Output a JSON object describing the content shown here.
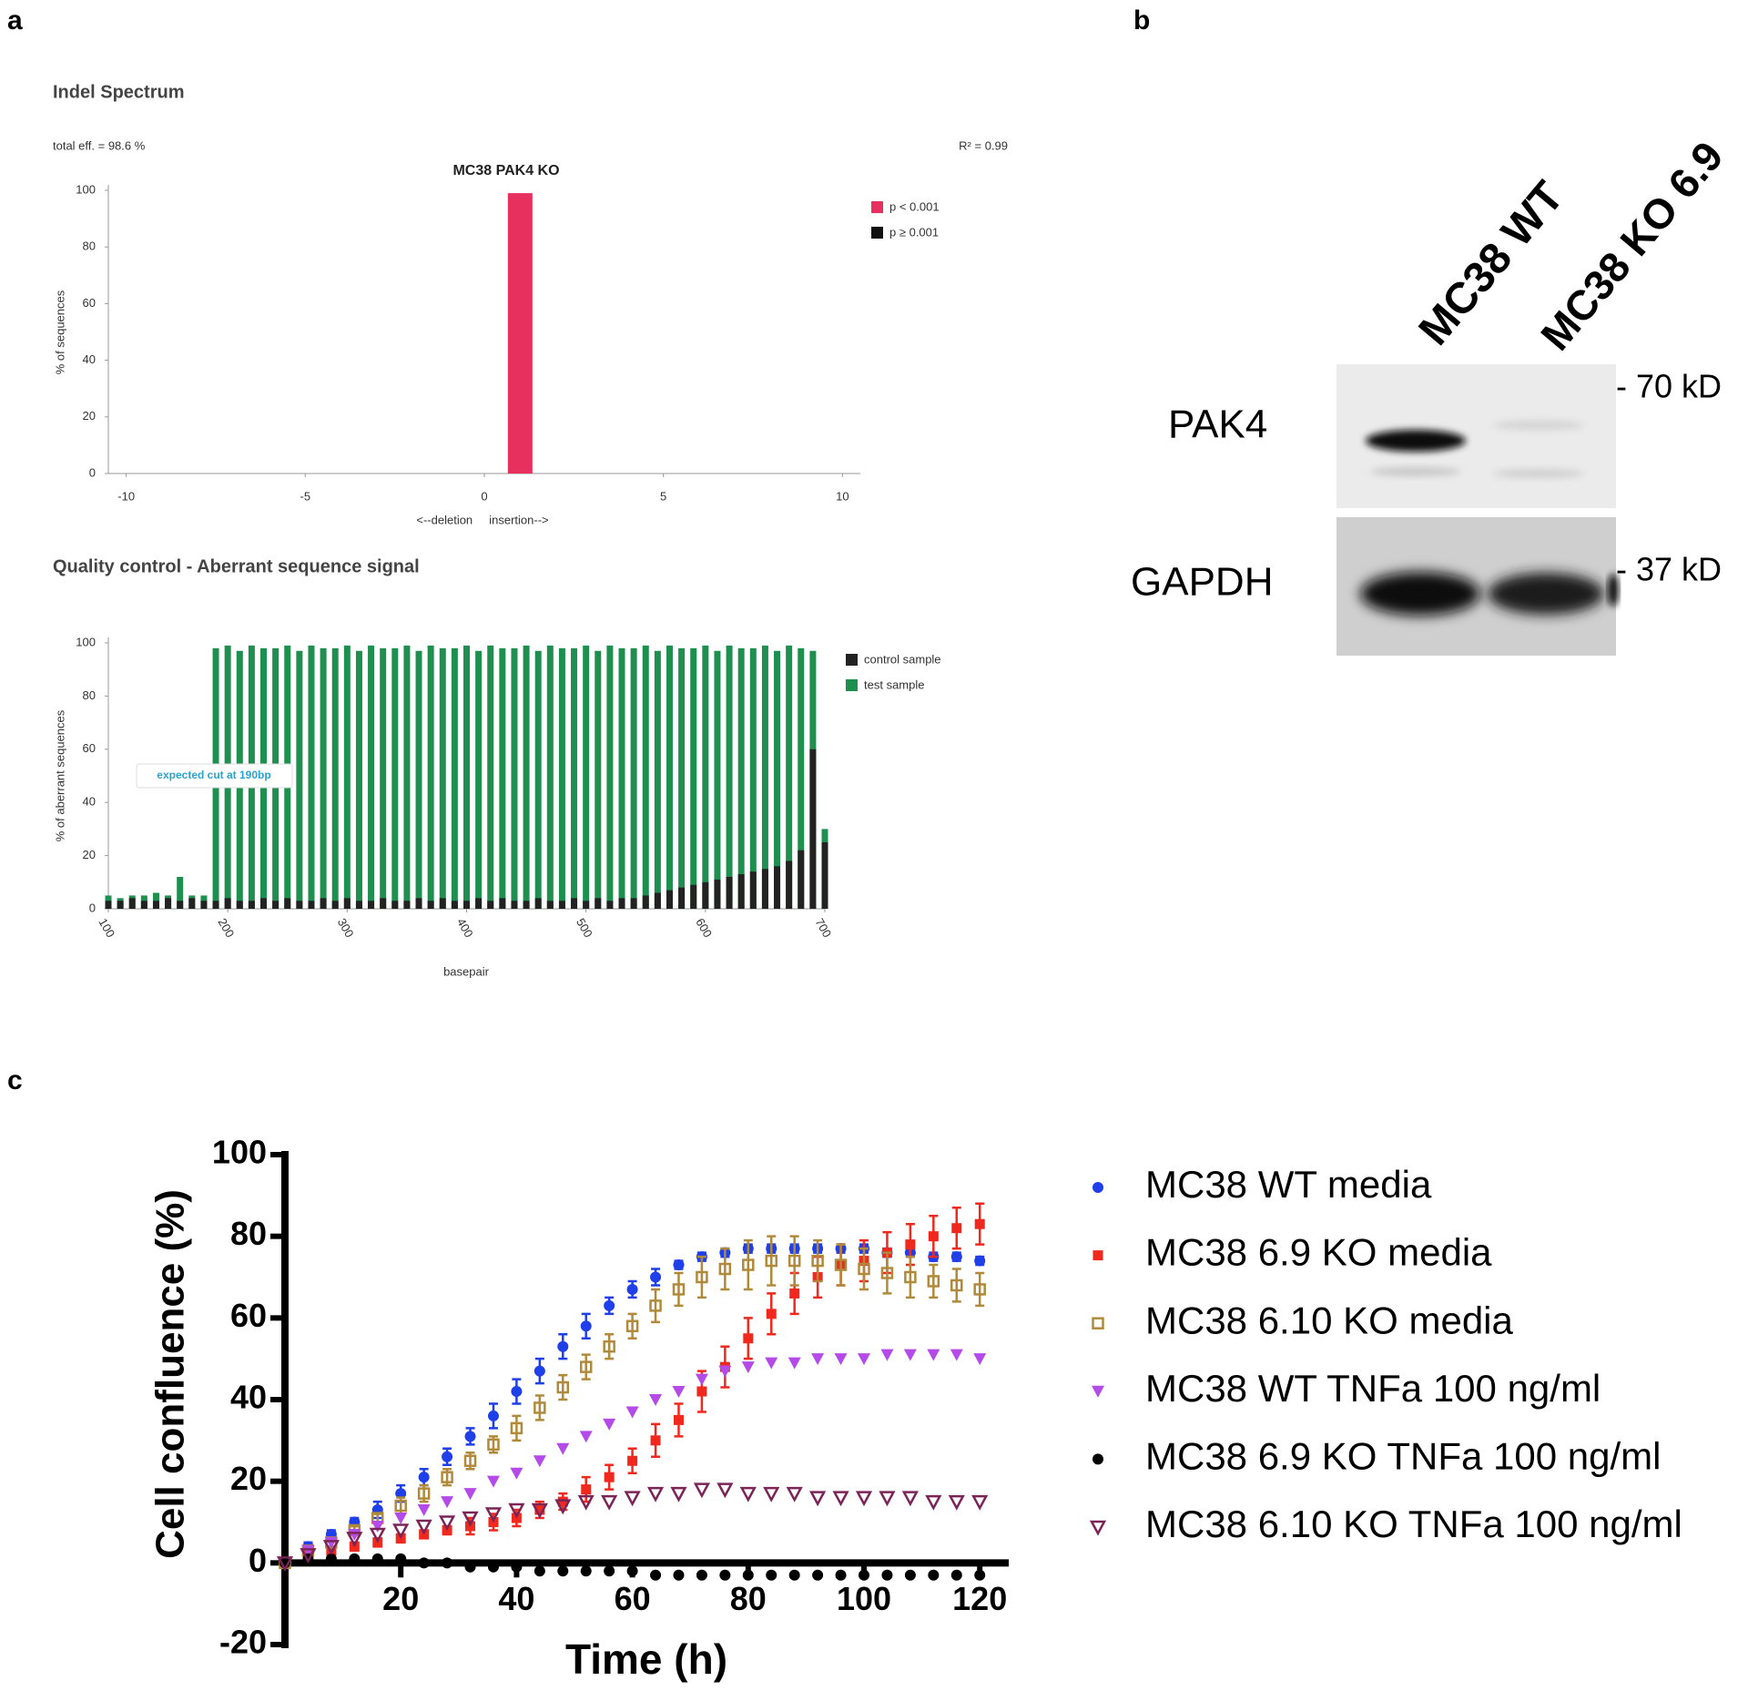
{
  "panels": [
    "a",
    "b",
    "c"
  ],
  "blot": {
    "lanes": [
      "MC38 WT",
      "MC38 KO 6.9"
    ],
    "rows": [
      "PAK4",
      "GAPDH"
    ],
    "markers": [
      "- 70 kD",
      "- 37 kD"
    ]
  },
  "chart_data": [
    {
      "type": "bar",
      "title": "Indel Spectrum",
      "subtitle": "MC38 PAK4 KO",
      "annotations": [
        "total eff. = 98.6 %",
        "R² = 0.99"
      ],
      "y_label": "% of sequences",
      "x_label": "<--deletion     insertion-->",
      "x": [
        1
      ],
      "series": [
        {
          "name": "p < 0.001",
          "color": "#e8305f",
          "values": [
            99
          ]
        },
        {
          "name": "p ≥ 0.001",
          "color": "#111111",
          "values": [
            null
          ]
        }
      ],
      "xlim": [
        -10.5,
        10.5
      ],
      "xticks": [
        -10,
        -5,
        0,
        5,
        10
      ],
      "ylim": [
        0,
        100
      ],
      "yticks": [
        0,
        20,
        40,
        60,
        80,
        100
      ]
    },
    {
      "type": "bar",
      "title": "Quality control - Aberrant sequence signal",
      "y_label": "% of aberrant sequences",
      "x_label": "basepair",
      "annotations": [
        "expected cut at 190bp"
      ],
      "x": [
        100,
        110,
        120,
        130,
        140,
        150,
        160,
        170,
        180,
        190,
        200,
        210,
        220,
        230,
        240,
        250,
        260,
        270,
        280,
        290,
        300,
        310,
        320,
        330,
        340,
        350,
        360,
        370,
        380,
        390,
        400,
        410,
        420,
        430,
        440,
        450,
        460,
        470,
        480,
        490,
        500,
        510,
        520,
        530,
        540,
        550,
        560,
        570,
        580,
        590,
        600,
        610,
        620,
        630,
        640,
        650,
        660,
        670,
        680,
        690,
        700
      ],
      "series": [
        {
          "name": "control sample",
          "color": "#222222",
          "values": [
            3,
            3,
            4,
            3,
            3,
            4,
            3,
            4,
            3,
            3,
            4,
            3,
            3,
            4,
            3,
            4,
            3,
            3,
            4,
            3,
            4,
            3,
            3,
            4,
            3,
            3,
            4,
            3,
            4,
            3,
            3,
            4,
            3,
            4,
            3,
            3,
            4,
            3,
            3,
            4,
            3,
            4,
            3,
            4,
            4,
            5,
            6,
            7,
            8,
            9,
            10,
            11,
            12,
            13,
            14,
            15,
            16,
            18,
            22,
            60,
            25
          ]
        },
        {
          "name": "test sample",
          "color": "#1e8f4e",
          "values": [
            5,
            4,
            5,
            5,
            6,
            5,
            12,
            5,
            5,
            98,
            99,
            97,
            99,
            98,
            98,
            99,
            97,
            99,
            98,
            98,
            99,
            97,
            99,
            98,
            98,
            99,
            97,
            99,
            98,
            98,
            99,
            97,
            99,
            98,
            98,
            99,
            97,
            99,
            98,
            98,
            99,
            97,
            99,
            98,
            98,
            99,
            97,
            99,
            98,
            98,
            99,
            97,
            99,
            98,
            98,
            99,
            97,
            99,
            98,
            97,
            30
          ]
        }
      ],
      "xlim": [
        100,
        700
      ],
      "xticks": [
        100,
        200,
        300,
        400,
        500,
        600,
        700
      ],
      "ylim": [
        0,
        100
      ],
      "yticks": [
        0,
        20,
        40,
        60,
        80,
        100
      ]
    },
    {
      "type": "scatter",
      "x_label": "Time (h)",
      "y_label": "Cell confluence (%)",
      "x": [
        0,
        4,
        8,
        12,
        16,
        20,
        24,
        28,
        32,
        36,
        40,
        44,
        48,
        52,
        56,
        60,
        64,
        68,
        72,
        76,
        80,
        84,
        88,
        92,
        96,
        100,
        104,
        108,
        112,
        116,
        120
      ],
      "series": [
        {
          "name": "MC38 WT media",
          "color": "#1f3fe8",
          "marker": "circle",
          "filled": true,
          "values": [
            0,
            4,
            7,
            10,
            13,
            17,
            21,
            26,
            31,
            36,
            42,
            47,
            53,
            58,
            63,
            67,
            70,
            73,
            75,
            76,
            77,
            77,
            77,
            77,
            77,
            77,
            76,
            76,
            75,
            75,
            74
          ],
          "errors": [
            0,
            1,
            1,
            1,
            2,
            2,
            2,
            2,
            2,
            3,
            3,
            3,
            3,
            3,
            2,
            2,
            2,
            1,
            1,
            1,
            1,
            1,
            1,
            1,
            1,
            1,
            1,
            1,
            1,
            1,
            1
          ]
        },
        {
          "name": "MC38 6.9 KO media",
          "color": "#f0281e",
          "marker": "square",
          "filled": true,
          "values": [
            0,
            2,
            3,
            4,
            5,
            6,
            7,
            8,
            9,
            10,
            11,
            13,
            15,
            18,
            21,
            25,
            30,
            35,
            42,
            48,
            55,
            61,
            66,
            70,
            73,
            74,
            76,
            78,
            80,
            82,
            83
          ],
          "errors": [
            0,
            1,
            1,
            1,
            1,
            1,
            1,
            1,
            2,
            2,
            2,
            2,
            2,
            3,
            3,
            3,
            4,
            4,
            5,
            5,
            5,
            5,
            5,
            5,
            5,
            5,
            5,
            5,
            5,
            5,
            5
          ]
        },
        {
          "name": "MC38 6.10 KO media",
          "color": "#b08a3a",
          "marker": "square",
          "filled": false,
          "values": [
            0,
            3,
            5,
            8,
            11,
            14,
            17,
            21,
            25,
            29,
            33,
            38,
            43,
            48,
            53,
            58,
            63,
            67,
            70,
            72,
            73,
            74,
            74,
            74,
            73,
            72,
            71,
            70,
            69,
            68,
            67
          ],
          "errors": [
            0,
            1,
            1,
            1,
            1,
            2,
            2,
            2,
            2,
            2,
            3,
            3,
            3,
            3,
            3,
            3,
            4,
            4,
            5,
            5,
            6,
            6,
            6,
            5,
            5,
            5,
            5,
            5,
            4,
            4,
            4
          ]
        },
        {
          "name": "MC38 WT TNFa 100 ng/ml",
          "color": "#b44ae8",
          "marker": "triangle",
          "filled": true,
          "values": [
            0,
            3,
            5,
            7,
            9,
            11,
            13,
            15,
            17,
            20,
            22,
            25,
            28,
            31,
            34,
            37,
            40,
            42,
            45,
            47,
            48,
            49,
            49,
            50,
            50,
            50,
            51,
            51,
            51,
            51,
            50
          ]
        },
        {
          "name": "MC38 6.9 KO TNFa 100 ng/ml",
          "color": "#000000",
          "marker": "circle",
          "filled": true,
          "values": [
            0,
            1,
            1,
            1,
            1,
            1,
            0,
            0,
            -1,
            -1,
            -1,
            -2,
            -2,
            -2,
            -2,
            -2,
            -3,
            -3,
            -3,
            -3,
            -3,
            -3,
            -3,
            -3,
            -3,
            -3,
            -3,
            -3,
            -3,
            -3,
            -3
          ]
        },
        {
          "name": "MC38 6.10 KO TNFa 100 ng/ml",
          "color": "#7a2458",
          "marker": "triangle",
          "filled": false,
          "values": [
            0,
            2,
            4,
            6,
            7,
            8,
            9,
            10,
            11,
            12,
            13,
            13,
            14,
            15,
            15,
            16,
            17,
            17,
            18,
            18,
            17,
            17,
            17,
            16,
            16,
            16,
            16,
            16,
            15,
            15,
            15
          ]
        }
      ],
      "xlim": [
        0,
        125
      ],
      "xticks": [
        20,
        40,
        60,
        80,
        100,
        120
      ],
      "ylim": [
        -20,
        100
      ],
      "yticks": [
        -20,
        0,
        20,
        40,
        60,
        80,
        100
      ]
    }
  ]
}
